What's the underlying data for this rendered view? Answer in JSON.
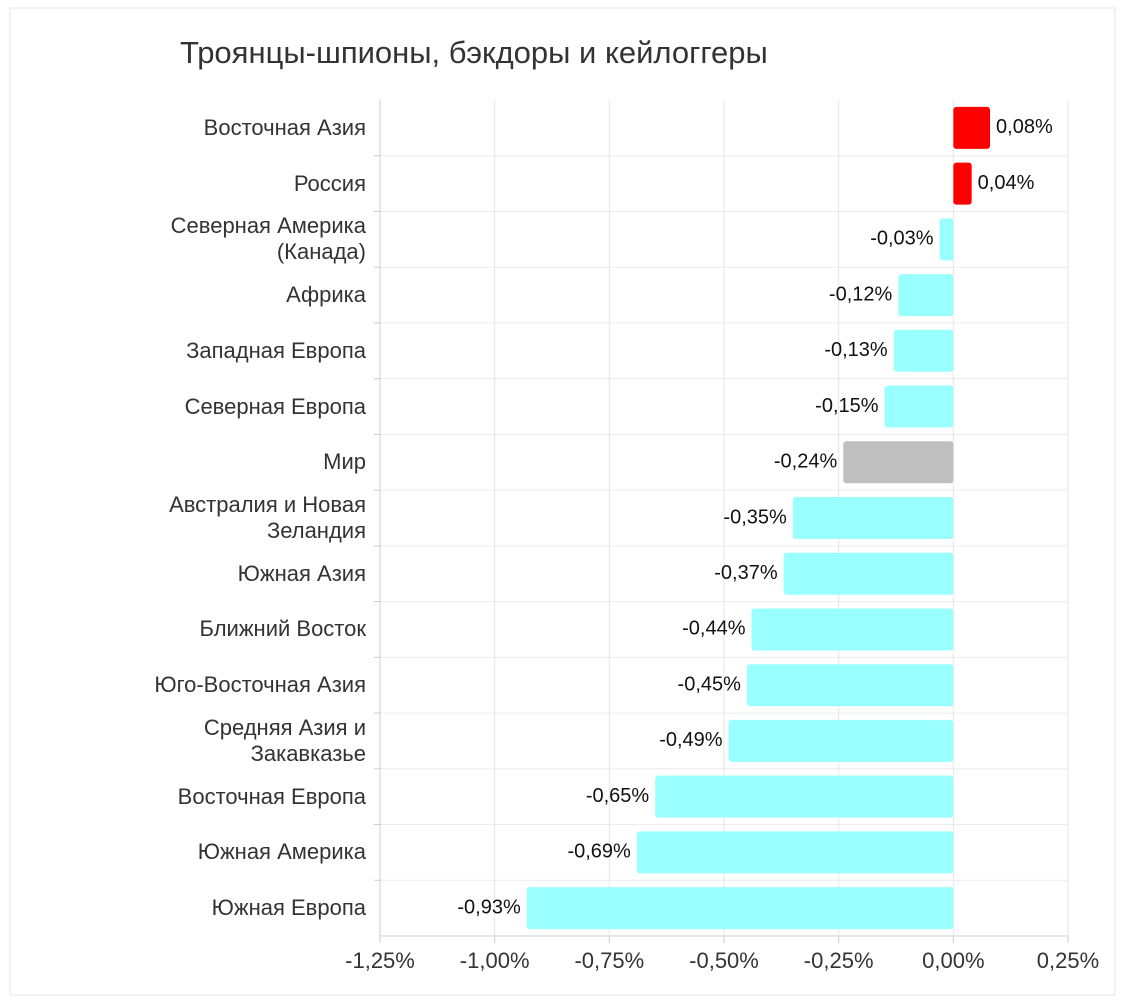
{
  "chart_data": {
    "type": "bar",
    "orientation": "horizontal",
    "title": "Троянцы-шпионы, бэкдоры и кейлоггеры",
    "categories": [
      "Восточная Азия",
      "Россия",
      "Северная Америка (Канада)",
      "Африка",
      "Западная Европа",
      "Северная Европа",
      "Мир",
      "Австралия и Новая Зеландия",
      "Южная Азия",
      "Ближний Восток",
      "Юго-Восточная Азия",
      "Средняя Азия и Закавказье",
      "Восточная Европа",
      "Южная Америка",
      "Южная Европа"
    ],
    "values": [
      0.08,
      0.04,
      -0.03,
      -0.12,
      -0.13,
      -0.15,
      -0.24,
      -0.35,
      -0.37,
      -0.44,
      -0.45,
      -0.49,
      -0.65,
      -0.69,
      -0.93
    ],
    "value_labels": [
      "0,08%",
      "0,04%",
      "-0,03%",
      "-0,12%",
      "-0,13%",
      "-0,15%",
      "-0,24%",
      "-0,35%",
      "-0,37%",
      "-0,44%",
      "-0,45%",
      "-0,49%",
      "-0,65%",
      "-0,69%",
      "-0,93%"
    ],
    "colors": [
      "#ff0000",
      "#ff0000",
      "#99ffff",
      "#99ffff",
      "#99ffff",
      "#99ffff",
      "#bfbfbf",
      "#99ffff",
      "#99ffff",
      "#99ffff",
      "#99ffff",
      "#99ffff",
      "#99ffff",
      "#99ffff",
      "#99ffff"
    ],
    "xlim": [
      -1.25,
      0.25
    ],
    "xticks": [
      {
        "value": -1.25,
        "label": "-1,25%"
      },
      {
        "value": -1,
        "label": "-1,00%"
      },
      {
        "value": -0.75,
        "label": "-0,75%"
      },
      {
        "value": -0.5,
        "label": "-0,50%"
      },
      {
        "value": -0.25,
        "label": "-0,25%"
      },
      {
        "value": 0,
        "label": "0,00%"
      },
      {
        "value": 0.25,
        "label": "0,25%"
      }
    ],
    "grid": true
  }
}
